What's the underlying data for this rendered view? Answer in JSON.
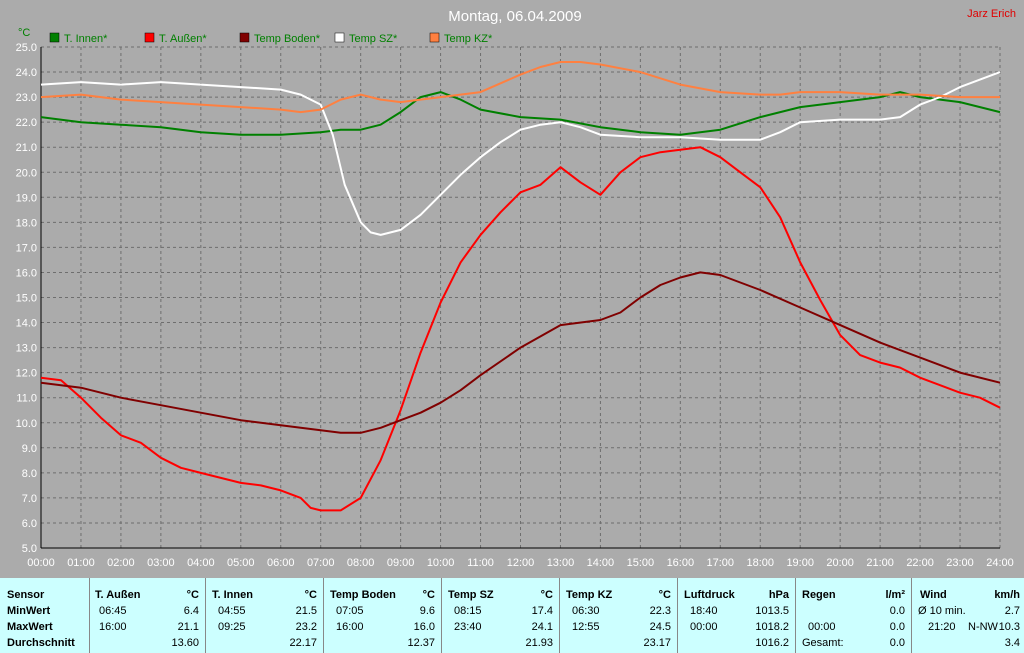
{
  "header": {
    "author": "Jarz Erich"
  },
  "chart_data": {
    "type": "line",
    "title": "Montag, 06.04.2009",
    "ylabel": "°C",
    "ylim": [
      5.0,
      25.0
    ],
    "yticks": [
      "5.0",
      "6.0",
      "7.0",
      "8.0",
      "9.0",
      "10.0",
      "11.0",
      "12.0",
      "13.0",
      "14.0",
      "15.0",
      "16.0",
      "17.0",
      "18.0",
      "19.0",
      "20.0",
      "21.0",
      "22.0",
      "23.0",
      "24.0",
      "25.0"
    ],
    "xlim": [
      0,
      24
    ],
    "xticks": [
      "00:00",
      "01:00",
      "02:00",
      "03:00",
      "04:00",
      "05:00",
      "06:00",
      "07:00",
      "08:00",
      "09:00",
      "10:00",
      "11:00",
      "12:00",
      "13:00",
      "14:00",
      "15:00",
      "16:00",
      "17:00",
      "18:00",
      "19:00",
      "20:00",
      "21:00",
      "22:00",
      "23:00",
      "24:00"
    ],
    "grid": true,
    "legend_position": "top",
    "series": [
      {
        "name": "T. Innen*",
        "color": "#008000",
        "x": [
          0,
          1,
          2,
          3,
          4,
          5,
          6,
          7,
          7.5,
          8,
          8.5,
          9,
          9.5,
          10,
          10.5,
          11,
          12,
          13,
          14,
          15,
          16,
          16.5,
          17,
          18,
          19,
          20,
          21,
          21.5,
          22,
          23,
          24
        ],
        "y": [
          22.2,
          22.0,
          21.9,
          21.8,
          21.6,
          21.5,
          21.5,
          21.6,
          21.7,
          21.7,
          21.9,
          22.4,
          23.0,
          23.2,
          22.9,
          22.5,
          22.2,
          22.1,
          21.8,
          21.6,
          21.5,
          21.6,
          21.7,
          22.2,
          22.6,
          22.8,
          23.0,
          23.2,
          23.0,
          22.8,
          22.4
        ]
      },
      {
        "name": "T. Außen*",
        "color": "#ff0000",
        "x": [
          0,
          0.5,
          1,
          1.5,
          2,
          2.5,
          3,
          3.5,
          4,
          4.5,
          5,
          5.5,
          6,
          6.5,
          6.75,
          7,
          7.5,
          8,
          8.5,
          9,
          9.5,
          10,
          10.5,
          11,
          11.5,
          12,
          12.5,
          13,
          13.5,
          14,
          14.5,
          15,
          15.5,
          16,
          16.5,
          17,
          17.5,
          18,
          18.5,
          19,
          19.5,
          20,
          20.5,
          21,
          21.5,
          22,
          22.5,
          23,
          23.5,
          24
        ],
        "y": [
          11.8,
          11.7,
          11.0,
          10.2,
          9.5,
          9.2,
          8.6,
          8.2,
          8.0,
          7.8,
          7.6,
          7.5,
          7.3,
          7.0,
          6.6,
          6.5,
          6.5,
          7.0,
          8.5,
          10.5,
          12.8,
          14.8,
          16.4,
          17.5,
          18.4,
          19.2,
          19.5,
          20.2,
          19.6,
          19.1,
          20.0,
          20.6,
          20.8,
          20.9,
          21.0,
          20.6,
          20.0,
          19.4,
          18.2,
          16.4,
          14.9,
          13.5,
          12.7,
          12.4,
          12.2,
          11.8,
          11.5,
          11.2,
          11.0,
          10.6
        ]
      },
      {
        "name": "Temp Boden*",
        "color": "#800000",
        "x": [
          0,
          1,
          2,
          3,
          4,
          5,
          6,
          7,
          7.5,
          8,
          8.5,
          9,
          9.5,
          10,
          10.5,
          11,
          12,
          13,
          14,
          14.5,
          15,
          15.5,
          16,
          16.5,
          17,
          18,
          19,
          20,
          21,
          22,
          23,
          24
        ],
        "y": [
          11.6,
          11.4,
          11.0,
          10.7,
          10.4,
          10.1,
          9.9,
          9.7,
          9.6,
          9.6,
          9.8,
          10.1,
          10.4,
          10.8,
          11.3,
          11.9,
          13.0,
          13.9,
          14.1,
          14.4,
          15.0,
          15.5,
          15.8,
          16.0,
          15.9,
          15.3,
          14.6,
          13.9,
          13.2,
          12.6,
          12.0,
          11.6
        ]
      },
      {
        "name": "Temp SZ*",
        "color": "#ffffff",
        "x": [
          0,
          1,
          2,
          3,
          4,
          5,
          6,
          6.5,
          7,
          7.3,
          7.6,
          8,
          8.25,
          8.5,
          9,
          9.5,
          10,
          10.5,
          11,
          11.5,
          12,
          12.5,
          13,
          13.5,
          14,
          15,
          16,
          17,
          18,
          18.5,
          19,
          20,
          21,
          21.5,
          22,
          22.5,
          23,
          23.5,
          24
        ],
        "y": [
          23.5,
          23.6,
          23.5,
          23.6,
          23.5,
          23.4,
          23.3,
          23.1,
          22.7,
          21.5,
          19.5,
          18.0,
          17.6,
          17.5,
          17.7,
          18.3,
          19.1,
          19.9,
          20.6,
          21.2,
          21.7,
          21.9,
          22.0,
          21.8,
          21.5,
          21.4,
          21.4,
          21.3,
          21.3,
          21.6,
          22.0,
          22.1,
          22.1,
          22.2,
          22.7,
          23.0,
          23.4,
          23.7,
          24.0
        ]
      },
      {
        "name": "Temp KZ*",
        "color": "#ff8040",
        "x": [
          0,
          1,
          2,
          3,
          4,
          5,
          6,
          6.5,
          7,
          7.5,
          8,
          8.5,
          9,
          9.5,
          10,
          11,
          12,
          12.5,
          13,
          13.5,
          14,
          15,
          16,
          17,
          18,
          18.5,
          19,
          20,
          21,
          22,
          23,
          24
        ],
        "y": [
          23.0,
          23.1,
          22.9,
          22.8,
          22.7,
          22.6,
          22.5,
          22.4,
          22.5,
          22.9,
          23.1,
          22.9,
          22.8,
          22.9,
          23.0,
          23.2,
          23.9,
          24.2,
          24.4,
          24.4,
          24.3,
          24.0,
          23.5,
          23.2,
          23.1,
          23.1,
          23.2,
          23.2,
          23.1,
          23.1,
          23.0,
          23.0
        ]
      }
    ]
  },
  "stats": {
    "rows": {
      "min": "MinWert",
      "max": "MaxWert",
      "avg": "Durchschnitt"
    },
    "sensor": {
      "label": "Sensor"
    },
    "t_aussen": {
      "label": "T. Außen",
      "unit": "°C",
      "min_time": "06:45",
      "min": "6.4",
      "max_time": "16:00",
      "max": "21.1",
      "avg": "13.60"
    },
    "t_innen": {
      "label": "T. Innen",
      "unit": "°C",
      "min_time": "04:55",
      "min": "21.5",
      "max_time": "09:25",
      "max": "23.2",
      "avg": "22.17"
    },
    "temp_boden": {
      "label": "Temp Boden",
      "unit": "°C",
      "min_time": "07:05",
      "min": "9.6",
      "max_time": "16:00",
      "max": "16.0",
      "avg": "12.37"
    },
    "temp_sz": {
      "label": "Temp SZ",
      "unit": "°C",
      "min_time": "08:15",
      "min": "17.4",
      "max_time": "23:40",
      "max": "24.1",
      "avg": "21.93"
    },
    "temp_kz": {
      "label": "Temp KZ",
      "unit": "°C",
      "min_time": "06:30",
      "min": "22.3",
      "max_time": "12:55",
      "max": "24.5",
      "avg": "23.17"
    },
    "luftdruck": {
      "label": "Luftdruck",
      "unit": "hPa",
      "min_time": "18:40",
      "min": "1013.5",
      "max_time": "00:00",
      "max": "1018.2",
      "avg": "1016.2"
    },
    "regen": {
      "label": "Regen",
      "unit": "l/m²",
      "r1_label": "",
      "r1": "0.0",
      "r2_label": "00:00",
      "r2": "0.0",
      "r3_label": "Gesamt:",
      "r3": "0.0"
    },
    "wind": {
      "label": "Wind",
      "unit": "km/h",
      "r1_label": "Ø 10 min.",
      "r1": "2.7",
      "r2_label": "21:20",
      "r2_dir": "N-NW",
      "r2": "10.3",
      "r3": "3.4"
    }
  }
}
